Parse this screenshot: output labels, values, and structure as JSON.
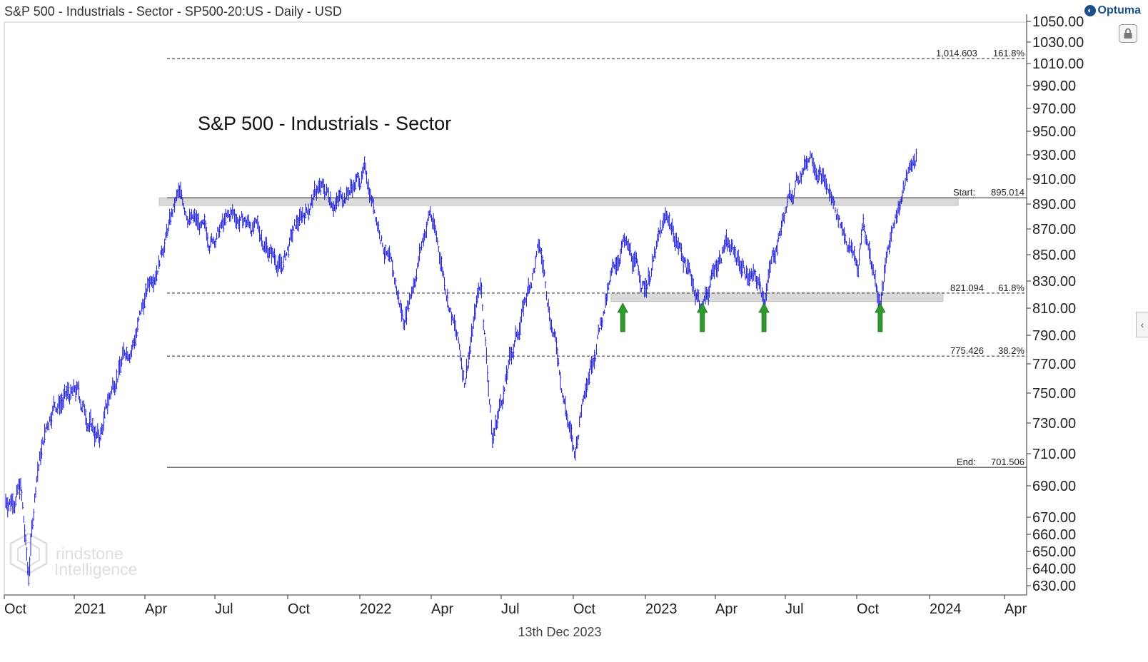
{
  "header": {
    "title": "S&P 500 - Industrials - Sector - SP500-20:US - Daily - USD",
    "brand": "Optuma"
  },
  "footer": {
    "date_label": "13th Dec 2023"
  },
  "colors": {
    "price": "#1a1ad8",
    "arrow": "#2e9a2e",
    "zone": "#d9d9d9",
    "line": "#222222"
  },
  "icons": {
    "brand": "optuma-logo-icon",
    "lock": "lock-icon",
    "panel": "chevron-left-icon"
  },
  "chart_data": {
    "type": "line",
    "title": "S&P 500 - Industrials - Sector",
    "watermark_text": [
      "rindstone",
      "Intelligence"
    ],
    "xlabel": "",
    "ylabel": "",
    "grid": false,
    "x_ticks": [
      "Oct",
      "2021",
      "Apr",
      "Jul",
      "Oct",
      "2022",
      "Apr",
      "Jul",
      "Oct",
      "2023",
      "Apr",
      "Jul",
      "Oct",
      "2024",
      "Apr"
    ],
    "y_ticks": [
      "630.00",
      "640.00",
      "650.00",
      "660.00",
      "670.00",
      "690.00",
      "710.00",
      "730.00",
      "750.00",
      "770.00",
      "790.00",
      "810.00",
      "830.00",
      "850.00",
      "870.00",
      "890.00",
      "910.00",
      "930.00",
      "950.00",
      "970.00",
      "990.00",
      "1010.00",
      "1030.00",
      "1050.00"
    ],
    "y_range": [
      620,
      1050
    ],
    "x_range": [
      "2020-10-01",
      "2024-04-30"
    ],
    "series": [
      {
        "type": "line",
        "x": [
          "2020-10-01",
          "2020-10-20",
          "2020-10-30",
          "2020-11-10",
          "2020-12-01",
          "2021-01-01",
          "2021-01-29",
          "2021-02-20",
          "2021-03-15",
          "2021-04-15",
          "2021-05-10",
          "2021-06-18",
          "2021-07-19",
          "2021-08-15",
          "2021-09-20",
          "2021-10-04",
          "2021-11-05",
          "2021-11-30",
          "2022-01-05",
          "2022-02-23",
          "2022-03-29",
          "2022-05-12",
          "2022-06-02",
          "2022-06-17",
          "2022-08-16",
          "2022-09-30",
          "2022-10-14",
          "2022-12-01",
          "2022-12-29",
          "2023-01-27",
          "2023-03-13",
          "2023-04-10",
          "2023-05-31",
          "2023-06-30",
          "2023-07-31",
          "2023-08-31",
          "2023-09-29",
          "2023-10-05",
          "2023-10-27",
          "2023-11-14",
          "2023-12-13"
        ],
        "y": [
          680,
          690,
          632,
          700,
          745,
          748,
          718,
          765,
          790,
          850,
          895,
          860,
          880,
          872,
          840,
          865,
          902,
          893,
          915,
          800,
          885,
          760,
          830,
          720,
          855,
          705,
          760,
          860,
          825,
          880,
          810,
          860,
          820,
          890,
          935,
          885,
          840,
          875,
          815,
          880,
          932
        ]
      }
    ],
    "horizontal_lines": [
      {
        "style": "dashed",
        "value": 1014.603,
        "label_left": "1,014.603",
        "label_right": "161.8%"
      },
      {
        "style": "solid",
        "value": 895.014,
        "label_left": "Start:",
        "label_right": "895.014"
      },
      {
        "style": "dashed",
        "value": 821.094,
        "label_left": "821.094",
        "label_right": "61.8%"
      },
      {
        "style": "dashed",
        "value": 775.426,
        "label_left": "775.426",
        "label_right": "38.2%"
      },
      {
        "style": "solid",
        "value": 701.506,
        "label_left": "End:",
        "label_right": "701.506"
      }
    ],
    "zones": [
      {
        "from_value": 890.5,
        "to_value": 895.014,
        "x_start": "2021-04-01",
        "x_end": "2023-12-31"
      },
      {
        "from_value": 816.5,
        "to_value": 821.094,
        "x_start": "2022-11-01",
        "x_end": "2023-12-31"
      }
    ],
    "support_arrows": [
      "2022-12-01",
      "2023-03-13",
      "2023-05-31",
      "2023-10-27"
    ]
  }
}
